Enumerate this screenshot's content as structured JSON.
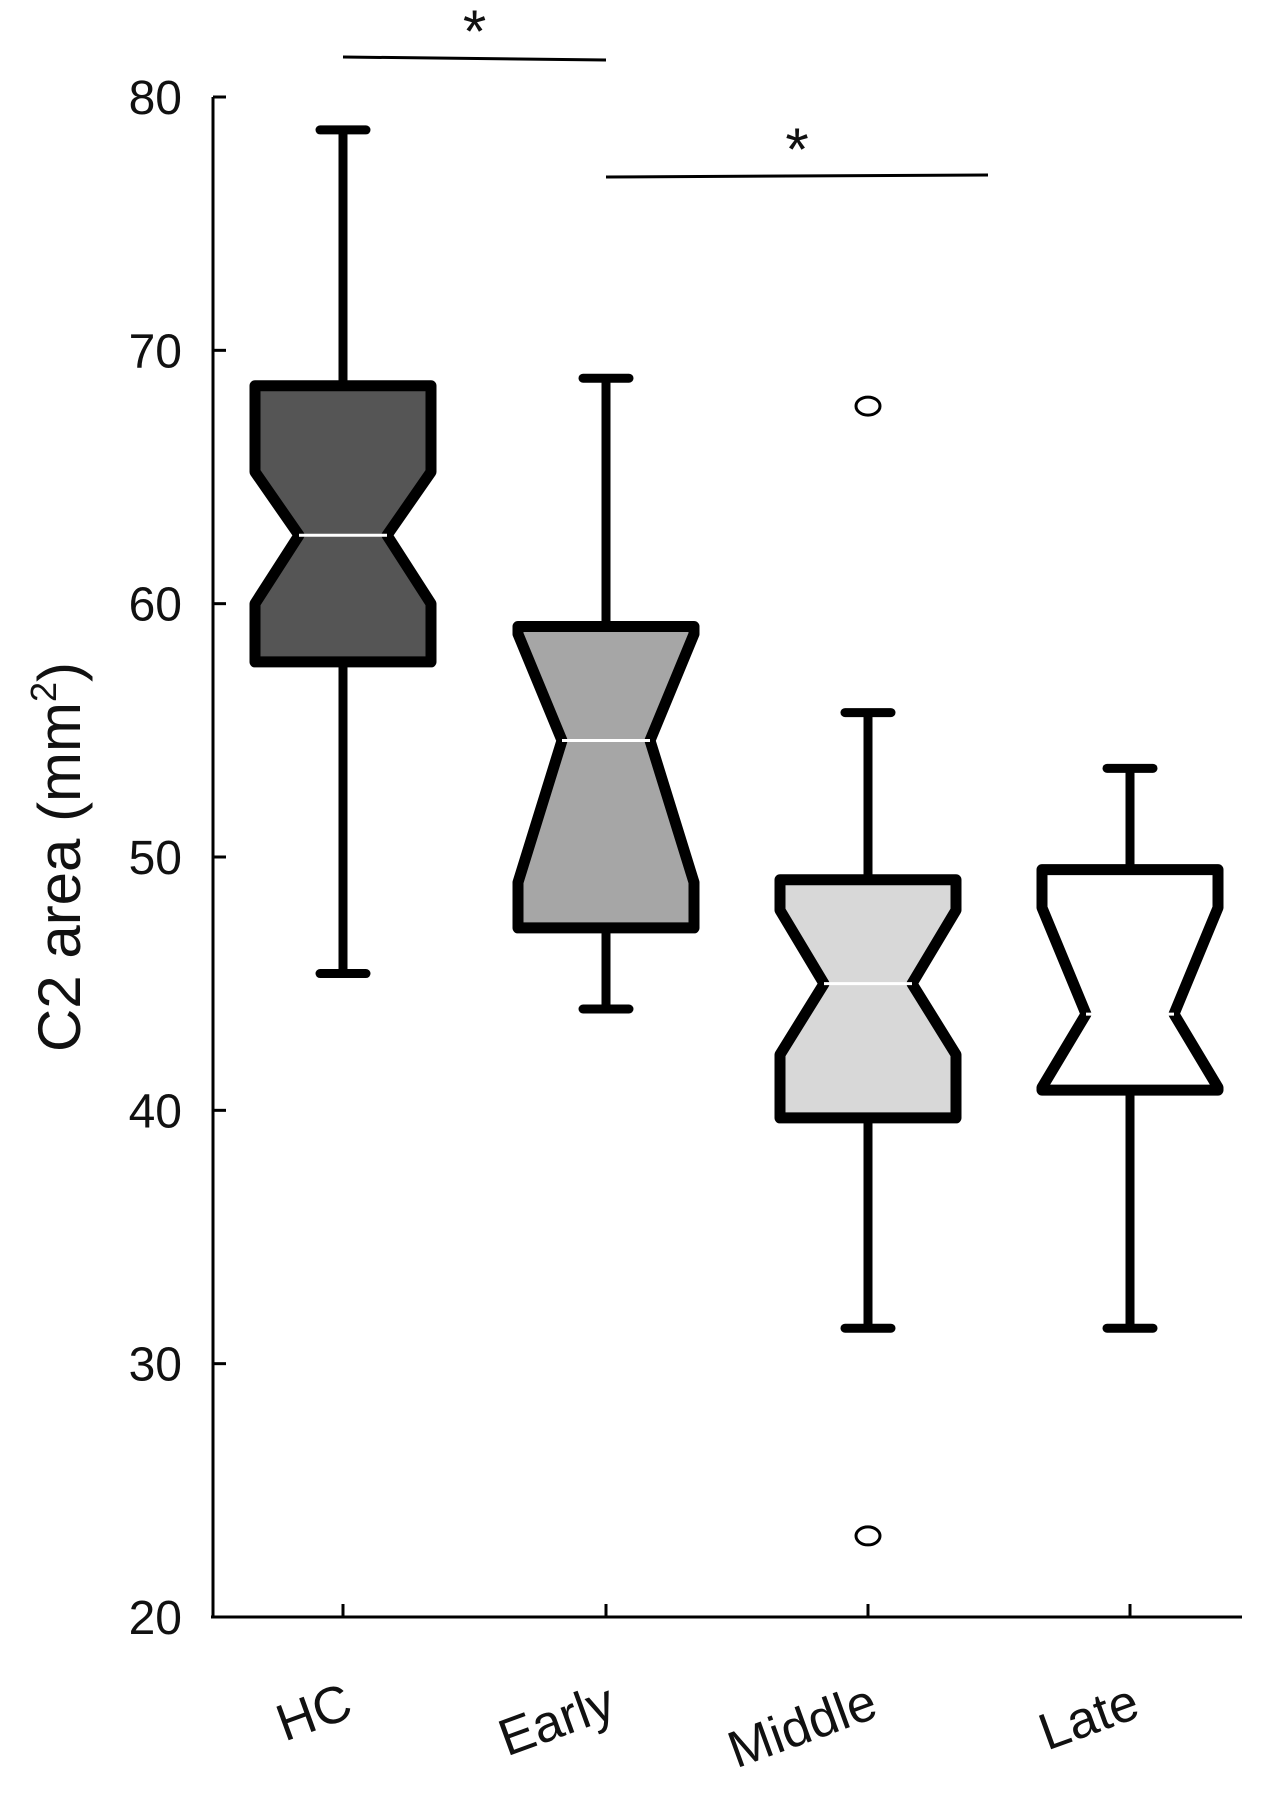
{
  "chart_data": {
    "type": "boxplot",
    "notched": true,
    "title": "",
    "xlabel": "",
    "ylabel": {
      "text": "C2 area (mm",
      "sup": "2",
      "close": ")"
    },
    "ylim": [
      20,
      80
    ],
    "yticks": [
      20,
      30,
      40,
      50,
      60,
      70,
      80
    ],
    "grid": false,
    "categories": [
      "HC",
      "Early",
      "Middle",
      "Late"
    ],
    "boxes": [
      {
        "category": "HC",
        "whisker_low": 45.4,
        "q1": 57.7,
        "median": 62.7,
        "q3": 68.6,
        "notch_low": 60.0,
        "notch_high": 65.2,
        "outliers": [],
        "fill": "#555555"
      },
      {
        "category": "Early",
        "whisker_low": 44.0,
        "q1": 47.2,
        "median": 54.6,
        "q3": 59.1,
        "notch_low": 49.0,
        "notch_high": 58.8,
        "outliers": [],
        "fill": "#a6a6a6"
      },
      {
        "category": "Middle",
        "whisker_low": 31.4,
        "q1": 39.7,
        "median": 45.0,
        "q3": 49.1,
        "notch_low": 42.2,
        "notch_high": 47.9,
        "outliers": [
          67.8,
          23.2
        ],
        "fill": "#d8d8d8"
      },
      {
        "category": "Late",
        "whisker_low": 31.4,
        "q1": 40.8,
        "median": 43.8,
        "q3": 49.5,
        "notch_low": 40.9,
        "notch_high": 48.0,
        "outliers": [],
        "fill": "#ffffff"
      }
    ],
    "whisker_high": [
      78.7,
      68.9,
      55.7,
      53.5
    ],
    "significance": [
      {
        "from": "HC",
        "to": "Early",
        "label": "*"
      },
      {
        "from": "Early",
        "to": "Middle",
        "label": "*"
      }
    ]
  }
}
